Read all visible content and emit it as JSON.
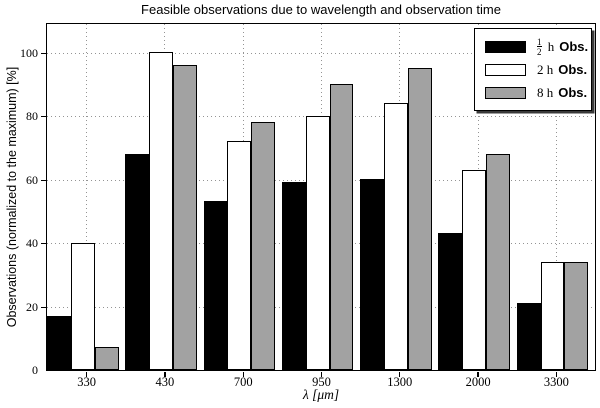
{
  "title": "Feasible observations due to wavelength and observation time",
  "axes": {
    "ylabel": "Observations (normalized to the maximum) [%]",
    "xlabel": "λ [μm]"
  },
  "chart_data": {
    "type": "bar",
    "title": "Feasible observations due to wavelength and observation time",
    "xlabel": "λ [μm]",
    "ylabel": "Observations (normalized to the maximum) [%]",
    "categories": [
      "330",
      "430",
      "700",
      "950",
      "1300",
      "2000",
      "3300"
    ],
    "series": [
      {
        "name": "1/2 h Obs.",
        "color": "#000000",
        "values": [
          17,
          68,
          53,
          59,
          60,
          43,
          21
        ]
      },
      {
        "name": "2 h Obs.",
        "color": "#ffffff",
        "values": [
          40,
          100,
          72,
          80,
          84,
          63,
          34
        ]
      },
      {
        "name": "8 h Obs.",
        "color": "#a2a2a2",
        "values": [
          7,
          96,
          78,
          90,
          95,
          68,
          34
        ]
      }
    ],
    "ylim": [
      0,
      109
    ],
    "yticks": [
      0,
      20,
      40,
      60,
      80,
      100
    ],
    "grid": true,
    "grid_style": "dotted",
    "legend_position": "top-right"
  },
  "legend": {
    "items": [
      {
        "frac_num": "1",
        "frac_den": "2",
        "unit": "h",
        "obs": "Obs.",
        "color": "#000000"
      },
      {
        "num": "2",
        "unit": "h",
        "obs": "Obs.",
        "color": "#ffffff"
      },
      {
        "num": "8",
        "unit": "h",
        "obs": "Obs.",
        "color": "#a2a2a2"
      }
    ]
  },
  "colors": {
    "bar_border": "#000000",
    "grid": "#949494",
    "frame": "#000000",
    "background": "#ffffff",
    "legend_shadow": "#3a3a3a"
  }
}
